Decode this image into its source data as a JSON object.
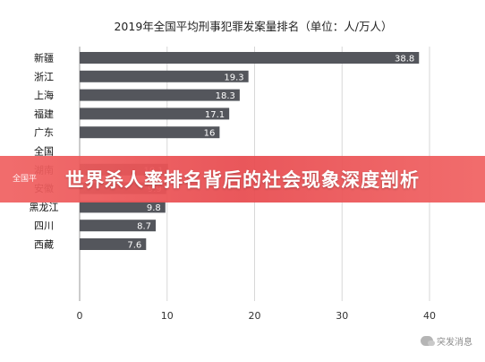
{
  "chart_data": {
    "type": "bar",
    "orientation": "horizontal",
    "title": "2019年全国平均刑事犯罪发案量排名（单位：人/万人）",
    "categories": [
      "新疆",
      "浙江",
      "上海",
      "福建",
      "广东",
      "全国",
      "湖南",
      "安徽",
      "黑龙江",
      "四川",
      "西藏"
    ],
    "values": [
      38.8,
      19.3,
      18.3,
      17.1,
      16,
      null,
      10.1,
      9.9,
      9.8,
      8.7,
      7.6
    ],
    "value_labels": [
      "38.8",
      "19.3",
      "18.3",
      "17.1",
      "16",
      "",
      "10.1",
      "9.9",
      "9.8",
      "8.7",
      "7.6"
    ],
    "xlim": [
      0,
      40
    ],
    "xticks": [
      "0",
      "10",
      "20",
      "30",
      "40"
    ],
    "grid": true,
    "bar_color": "#54565c"
  },
  "banner": {
    "text": "世界杀人率排名背后的社会现象深度剖析",
    "partial_label": "全国平"
  },
  "watermark": {
    "text": "突发消息",
    "icon": "chat-bubble-icon"
  }
}
